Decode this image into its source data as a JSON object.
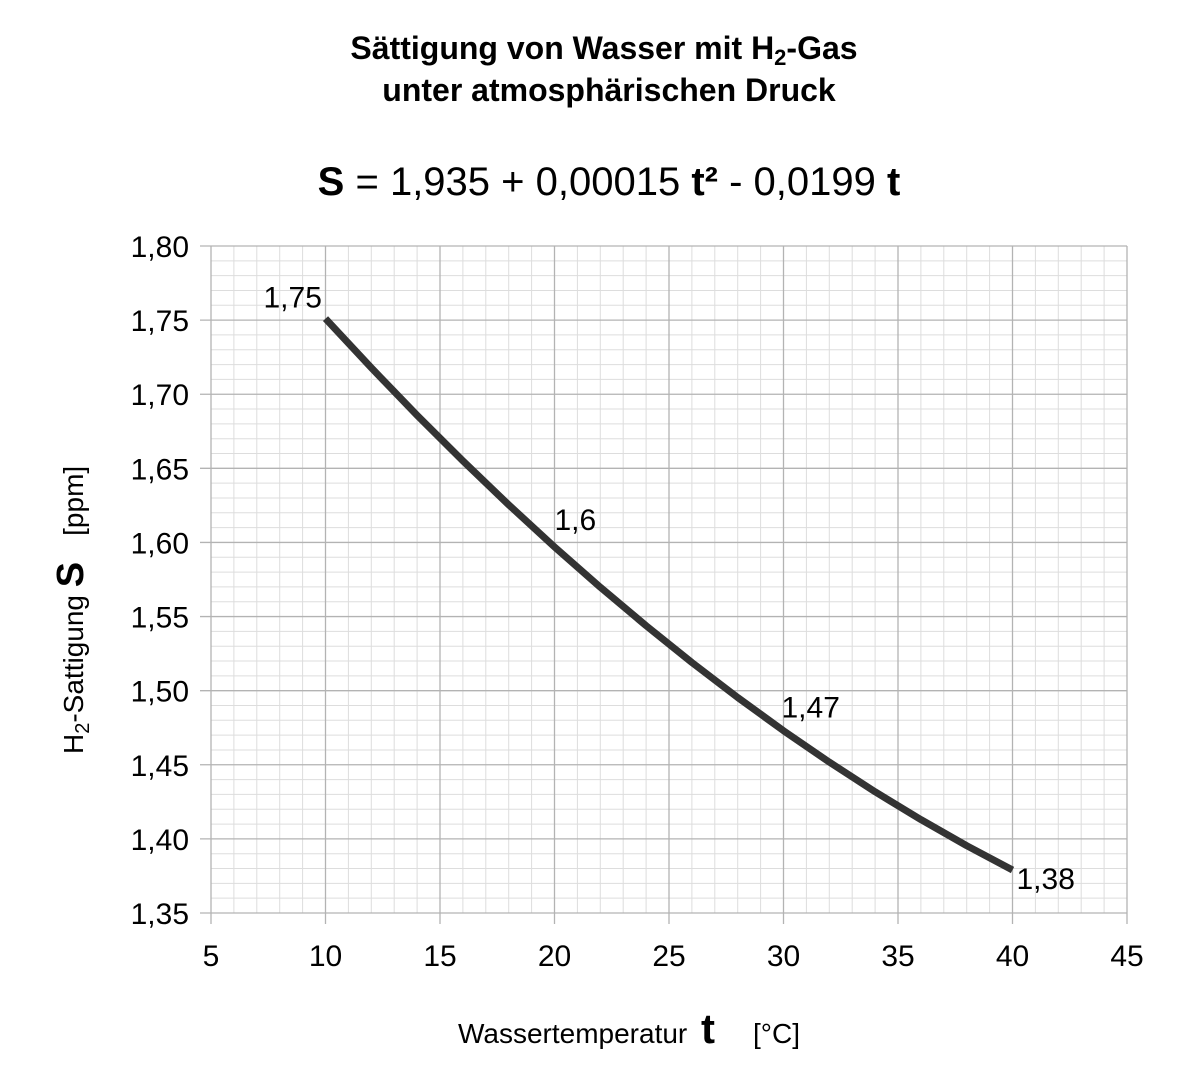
{
  "chart_data": {
    "type": "line",
    "title_line1_pre": "Sättigung von Wasser mit H",
    "title_line1_sub": "2",
    "title_line1_post": "-Gas",
    "title_line2": "unter atmosphärischen Druck",
    "equation": {
      "s": "S",
      "part1": " = 1,935 + 0,00015 ",
      "t2": "t²",
      "part2": " - 0,0199 ",
      "t": "t"
    },
    "xlabel": {
      "text": "Wassertemperatur ",
      "symbol": "t",
      "unit": "[°C]"
    },
    "ylabel": {
      "pre": "H",
      "sub": "2",
      "post": "-Sattigung ",
      "symbol": "S",
      "unit": "[ppm]"
    },
    "xlim": [
      5,
      45
    ],
    "ylim": [
      1.35,
      1.8
    ],
    "x_ticks": [
      "5",
      "10",
      "15",
      "20",
      "25",
      "30",
      "35",
      "40",
      "45"
    ],
    "y_ticks": [
      "1,35",
      "1,40",
      "1,45",
      "1,50",
      "1,55",
      "1,60",
      "1,65",
      "1,70",
      "1,75",
      "1,80"
    ],
    "grid": {
      "major": true,
      "minor": true
    },
    "line_color": "#333333",
    "series": [
      {
        "x": [
          10,
          12,
          14,
          16,
          18,
          20,
          22,
          24,
          26,
          28,
          30,
          32,
          34,
          36,
          38,
          40
        ],
        "y": [
          1.751,
          1.7178,
          1.6858,
          1.655,
          1.6254,
          1.597,
          1.5698,
          1.5438,
          1.519,
          1.4954,
          1.473,
          1.4518,
          1.4318,
          1.413,
          1.3954,
          1.379
        ]
      }
    ],
    "data_labels": [
      {
        "x": 10,
        "y": 1.751,
        "text": "1,75"
      },
      {
        "x": 20,
        "y": 1.597,
        "text": "1,6"
      },
      {
        "x": 30,
        "y": 1.473,
        "text": "1,47"
      },
      {
        "x": 40,
        "y": 1.379,
        "text": "1,38"
      }
    ]
  }
}
